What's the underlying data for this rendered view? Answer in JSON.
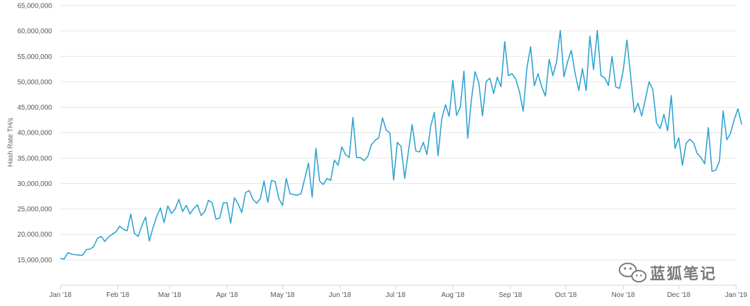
{
  "colors": {
    "series": "#2ea3d2",
    "grid": "#e6e6e6",
    "axis": "#ccd6eb"
  },
  "watermark": {
    "icon": "wechat-icon",
    "text": "蓝狐笔记"
  },
  "chart_data": {
    "type": "line",
    "title": "",
    "xlabel": "",
    "ylabel": "Hash Rate TH/s",
    "ylim": [
      10000000,
      65000000
    ],
    "yticks": [
      15000000,
      20000000,
      25000000,
      30000000,
      35000000,
      40000000,
      45000000,
      50000000,
      55000000,
      60000000,
      65000000
    ],
    "ytick_labels": [
      "15,000,000",
      "20,000,000",
      "25,000,000",
      "30,000,000",
      "35,000,000",
      "40,000,000",
      "45,000,000",
      "50,000,000",
      "55,000,000",
      "60,000,000",
      "65,000,000"
    ],
    "xlim": [
      "2018-01-01",
      "2019-01-01"
    ],
    "xticks": [
      "2018-01-01",
      "2018-02-01",
      "2018-03-01",
      "2018-04-01",
      "2018-05-01",
      "2018-06-01",
      "2018-07-01",
      "2018-08-01",
      "2018-09-01",
      "2018-10-01",
      "2018-11-01",
      "2018-12-01",
      "2019-01-01"
    ],
    "xtick_labels": [
      "Jan '18",
      "Feb '18",
      "Mar '18",
      "Apr '18",
      "May '18",
      "Jun '18",
      "Jul '18",
      "Aug '18",
      "Sep '18",
      "Oct '18",
      "Nov '18",
      "Dec '18",
      "Jan '19"
    ],
    "grid": true,
    "legend": "none",
    "series": [
      {
        "points": [
          [
            "2018-01-01",
            15300000
          ],
          [
            "2018-01-03",
            15100000
          ],
          [
            "2018-01-05",
            16400000
          ],
          [
            "2018-01-07",
            16100000
          ],
          [
            "2018-01-09",
            16000000
          ],
          [
            "2018-01-11",
            15900000
          ],
          [
            "2018-01-13",
            15900000
          ],
          [
            "2018-01-15",
            17000000
          ],
          [
            "2018-01-17",
            17100000
          ],
          [
            "2018-01-19",
            17600000
          ],
          [
            "2018-01-21",
            19200000
          ],
          [
            "2018-01-23",
            19600000
          ],
          [
            "2018-01-25",
            18600000
          ],
          [
            "2018-01-27",
            19500000
          ],
          [
            "2018-01-29",
            20000000
          ],
          [
            "2018-01-31",
            20500000
          ],
          [
            "2018-02-02",
            21600000
          ],
          [
            "2018-02-04",
            21000000
          ],
          [
            "2018-02-06",
            20700000
          ],
          [
            "2018-02-08",
            24000000
          ],
          [
            "2018-02-10",
            20200000
          ],
          [
            "2018-02-12",
            19600000
          ],
          [
            "2018-02-14",
            21700000
          ],
          [
            "2018-02-16",
            23400000
          ],
          [
            "2018-02-18",
            18700000
          ],
          [
            "2018-02-20",
            21300000
          ],
          [
            "2018-02-22",
            23500000
          ],
          [
            "2018-02-24",
            25200000
          ],
          [
            "2018-02-26",
            22300000
          ],
          [
            "2018-02-28",
            25600000
          ],
          [
            "2018-03-02",
            24100000
          ],
          [
            "2018-03-04",
            25000000
          ],
          [
            "2018-03-06",
            26900000
          ],
          [
            "2018-03-08",
            24500000
          ],
          [
            "2018-03-10",
            25700000
          ],
          [
            "2018-03-12",
            24000000
          ],
          [
            "2018-03-14",
            25100000
          ],
          [
            "2018-03-16",
            25800000
          ],
          [
            "2018-03-18",
            23700000
          ],
          [
            "2018-03-20",
            24500000
          ],
          [
            "2018-03-22",
            26700000
          ],
          [
            "2018-03-24",
            26200000
          ],
          [
            "2018-03-26",
            23000000
          ],
          [
            "2018-03-28",
            23200000
          ],
          [
            "2018-03-30",
            26200000
          ],
          [
            "2018-04-01",
            26200000
          ],
          [
            "2018-04-03",
            22200000
          ],
          [
            "2018-04-05",
            27200000
          ],
          [
            "2018-04-07",
            26000000
          ],
          [
            "2018-04-09",
            24300000
          ],
          [
            "2018-04-11",
            28200000
          ],
          [
            "2018-04-13",
            28600000
          ],
          [
            "2018-04-15",
            26900000
          ],
          [
            "2018-04-17",
            26100000
          ],
          [
            "2018-04-19",
            27000000
          ],
          [
            "2018-04-21",
            30500000
          ],
          [
            "2018-04-23",
            26300000
          ],
          [
            "2018-04-25",
            30600000
          ],
          [
            "2018-04-27",
            30400000
          ],
          [
            "2018-04-29",
            27000000
          ],
          [
            "2018-05-01",
            25700000
          ],
          [
            "2018-05-03",
            31000000
          ],
          [
            "2018-05-05",
            28000000
          ],
          [
            "2018-05-07",
            27800000
          ],
          [
            "2018-05-09",
            27700000
          ],
          [
            "2018-05-11",
            28000000
          ],
          [
            "2018-05-13",
            31000000
          ],
          [
            "2018-05-15",
            34000000
          ],
          [
            "2018-05-17",
            27300000
          ],
          [
            "2018-05-19",
            36900000
          ],
          [
            "2018-05-21",
            30500000
          ],
          [
            "2018-05-23",
            29800000
          ],
          [
            "2018-05-25",
            31000000
          ],
          [
            "2018-05-27",
            30600000
          ],
          [
            "2018-05-29",
            34600000
          ],
          [
            "2018-05-31",
            33600000
          ],
          [
            "2018-06-02",
            37200000
          ],
          [
            "2018-06-04",
            35700000
          ],
          [
            "2018-06-06",
            35100000
          ],
          [
            "2018-06-08",
            43000000
          ],
          [
            "2018-06-10",
            35100000
          ],
          [
            "2018-06-12",
            35100000
          ],
          [
            "2018-06-14",
            34500000
          ],
          [
            "2018-06-16",
            35300000
          ],
          [
            "2018-06-18",
            37600000
          ],
          [
            "2018-06-20",
            38500000
          ],
          [
            "2018-06-22",
            39000000
          ],
          [
            "2018-06-24",
            42900000
          ],
          [
            "2018-06-26",
            40500000
          ],
          [
            "2018-06-28",
            39900000
          ],
          [
            "2018-06-30",
            30700000
          ],
          [
            "2018-07-02",
            38100000
          ],
          [
            "2018-07-04",
            37300000
          ],
          [
            "2018-07-06",
            31000000
          ],
          [
            "2018-07-08",
            36400000
          ],
          [
            "2018-07-10",
            41600000
          ],
          [
            "2018-07-12",
            36400000
          ],
          [
            "2018-07-14",
            36200000
          ],
          [
            "2018-07-16",
            38100000
          ],
          [
            "2018-07-18",
            35700000
          ],
          [
            "2018-07-20",
            41300000
          ],
          [
            "2018-07-22",
            44000000
          ],
          [
            "2018-07-24",
            35500000
          ],
          [
            "2018-07-26",
            42700000
          ],
          [
            "2018-07-28",
            45500000
          ],
          [
            "2018-07-30",
            43200000
          ],
          [
            "2018-08-01",
            50300000
          ],
          [
            "2018-08-03",
            43400000
          ],
          [
            "2018-08-05",
            45000000
          ],
          [
            "2018-08-07",
            52100000
          ],
          [
            "2018-08-09",
            38900000
          ],
          [
            "2018-08-11",
            46400000
          ],
          [
            "2018-08-13",
            52000000
          ],
          [
            "2018-08-15",
            49800000
          ],
          [
            "2018-08-17",
            43300000
          ],
          [
            "2018-08-19",
            50100000
          ],
          [
            "2018-08-21",
            50700000
          ],
          [
            "2018-08-23",
            47700000
          ],
          [
            "2018-08-25",
            50900000
          ],
          [
            "2018-08-27",
            49000000
          ],
          [
            "2018-08-29",
            57900000
          ],
          [
            "2018-08-31",
            51200000
          ],
          [
            "2018-09-02",
            51600000
          ],
          [
            "2018-09-04",
            50500000
          ],
          [
            "2018-09-06",
            48000000
          ],
          [
            "2018-09-08",
            44200000
          ],
          [
            "2018-09-10",
            52800000
          ],
          [
            "2018-09-12",
            56900000
          ],
          [
            "2018-09-14",
            49200000
          ],
          [
            "2018-09-16",
            51600000
          ],
          [
            "2018-09-18",
            49000000
          ],
          [
            "2018-09-20",
            47200000
          ],
          [
            "2018-09-22",
            54400000
          ],
          [
            "2018-09-24",
            51200000
          ],
          [
            "2018-09-26",
            53900000
          ],
          [
            "2018-09-28",
            60100000
          ],
          [
            "2018-09-30",
            51000000
          ],
          [
            "2018-10-02",
            54000000
          ],
          [
            "2018-10-04",
            56200000
          ],
          [
            "2018-10-06",
            51700000
          ],
          [
            "2018-10-08",
            48300000
          ],
          [
            "2018-10-10",
            52600000
          ],
          [
            "2018-10-12",
            48300000
          ],
          [
            "2018-10-14",
            59000000
          ],
          [
            "2018-10-16",
            52400000
          ],
          [
            "2018-10-18",
            60100000
          ],
          [
            "2018-10-20",
            51200000
          ],
          [
            "2018-10-22",
            50800000
          ],
          [
            "2018-10-24",
            49300000
          ],
          [
            "2018-10-26",
            55000000
          ],
          [
            "2018-10-28",
            49000000
          ],
          [
            "2018-10-30",
            48700000
          ],
          [
            "2018-11-01",
            52200000
          ],
          [
            "2018-11-03",
            58200000
          ],
          [
            "2018-11-05",
            51200000
          ],
          [
            "2018-11-07",
            44000000
          ],
          [
            "2018-11-09",
            45800000
          ],
          [
            "2018-11-11",
            43300000
          ],
          [
            "2018-11-13",
            46600000
          ],
          [
            "2018-11-15",
            50000000
          ],
          [
            "2018-11-17",
            48500000
          ],
          [
            "2018-11-19",
            41900000
          ],
          [
            "2018-11-21",
            40800000
          ],
          [
            "2018-11-23",
            43600000
          ],
          [
            "2018-11-25",
            40400000
          ],
          [
            "2018-11-27",
            47300000
          ],
          [
            "2018-11-29",
            36900000
          ],
          [
            "2018-12-01",
            39000000
          ],
          [
            "2018-12-03",
            33600000
          ],
          [
            "2018-12-05",
            37900000
          ],
          [
            "2018-12-07",
            38700000
          ],
          [
            "2018-12-09",
            38000000
          ],
          [
            "2018-12-11",
            35900000
          ],
          [
            "2018-12-13",
            35100000
          ],
          [
            "2018-12-15",
            33900000
          ],
          [
            "2018-12-17",
            41000000
          ],
          [
            "2018-12-19",
            32400000
          ],
          [
            "2018-12-21",
            32600000
          ],
          [
            "2018-12-23",
            34400000
          ],
          [
            "2018-12-25",
            44300000
          ],
          [
            "2018-12-27",
            38600000
          ],
          [
            "2018-12-29",
            39900000
          ],
          [
            "2018-12-31",
            42600000
          ],
          [
            "2019-01-02",
            44700000
          ],
          [
            "2019-01-04",
            41600000
          ]
        ]
      }
    ]
  }
}
